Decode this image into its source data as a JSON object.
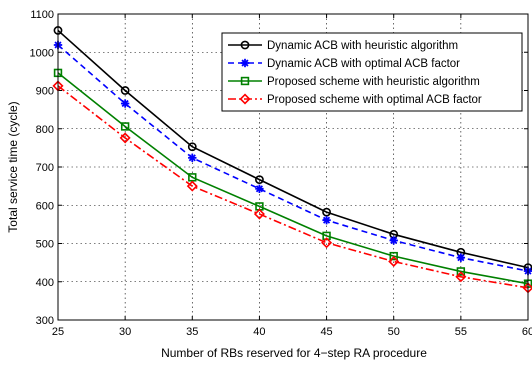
{
  "chart_data": {
    "type": "line",
    "title": "",
    "xlabel": "Number of RBs reserved for 4−step RA procedure",
    "ylabel": "Total service time (cycle)",
    "xlim": [
      25,
      60
    ],
    "ylim": [
      300,
      1100
    ],
    "xticks": [
      25,
      30,
      35,
      40,
      45,
      50,
      55,
      60
    ],
    "yticks": [
      300,
      400,
      500,
      600,
      700,
      800,
      900,
      1000,
      1100
    ],
    "grid": true,
    "legend_position": "top-right",
    "x": [
      25,
      30,
      35,
      40,
      45,
      50,
      55,
      60
    ],
    "series": [
      {
        "name": "Dynamic ACB with heuristic algorithm",
        "values": [
          1057,
          900,
          753,
          667,
          582,
          524,
          477,
          437
        ],
        "color": "#000000",
        "dash": "solid",
        "marker": "circle"
      },
      {
        "name": "Dynamic ACB with optimal ACB factor",
        "values": [
          1019,
          866,
          724,
          643,
          561,
          508,
          463,
          428
        ],
        "color": "#0000ff",
        "dash": "dashed",
        "marker": "star"
      },
      {
        "name": "Proposed scheme with heuristic algorithm",
        "values": [
          946,
          806,
          673,
          597,
          520,
          467,
          427,
          395
        ],
        "color": "#008000",
        "dash": "solid",
        "marker": "square"
      },
      {
        "name": "Proposed scheme with optimal ACB factor",
        "values": [
          912,
          776,
          650,
          577,
          502,
          453,
          413,
          384
        ],
        "color": "#ff0000",
        "dash": "dashdot",
        "marker": "diamond"
      }
    ]
  }
}
